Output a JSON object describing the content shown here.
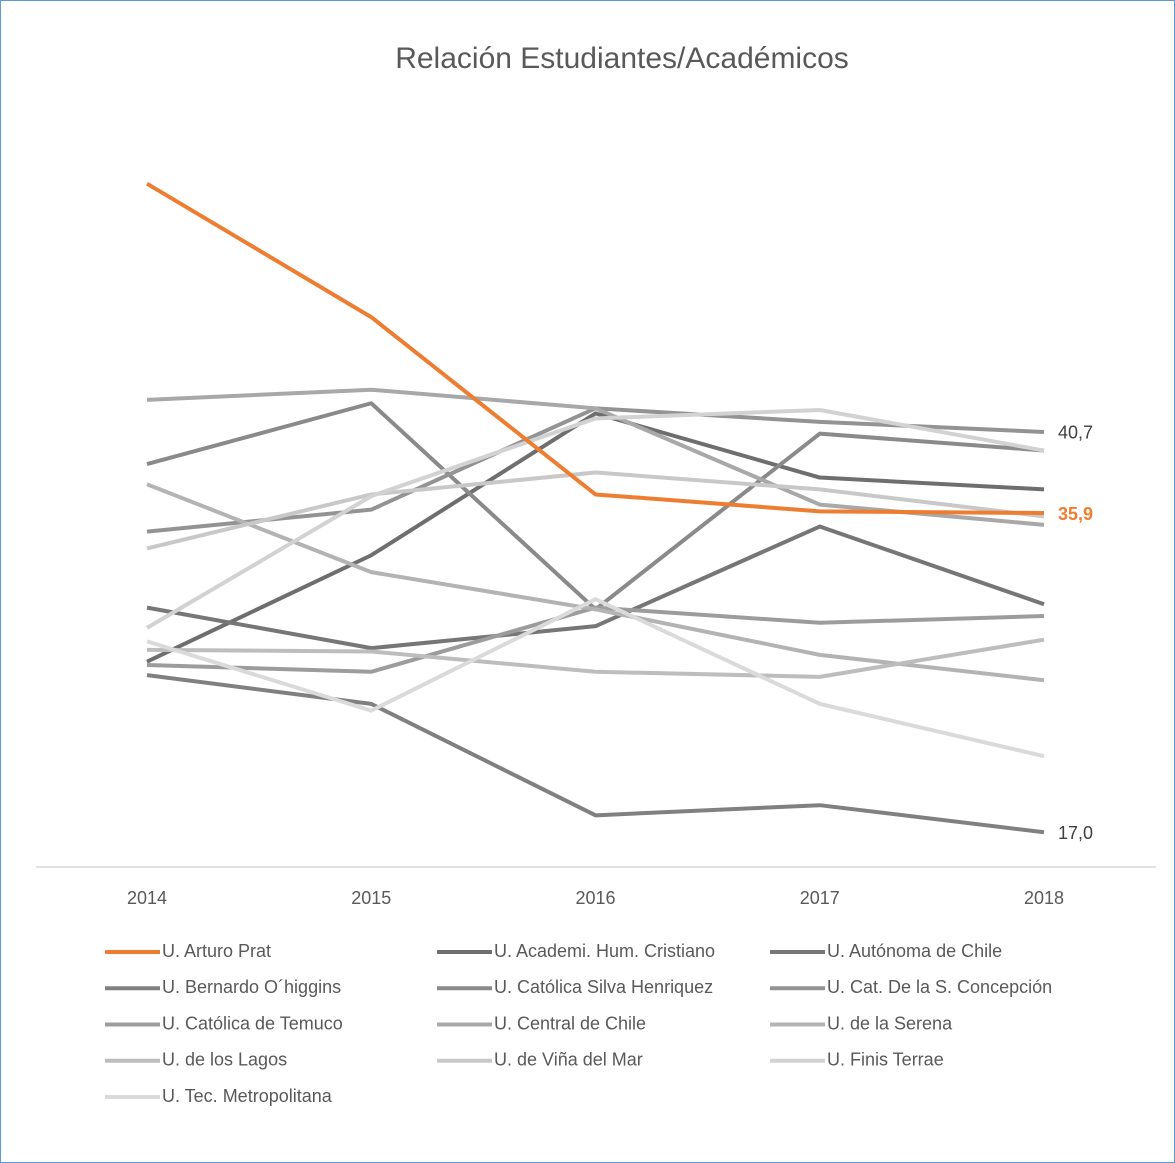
{
  "chart_data": {
    "type": "line",
    "title": "Relación Estudiantes/Académicos",
    "x": [
      "2014",
      "2015",
      "2016",
      "2017",
      "2018"
    ],
    "ylim": [
      15,
      60
    ],
    "series": [
      {
        "name": "U. Arturo Prat",
        "color": "#ed7d31",
        "values": [
          55.4,
          47.5,
          37.0,
          36.0,
          35.9
        ],
        "value_labels": [
          null,
          null,
          null,
          null,
          "35,9"
        ]
      },
      {
        "name": "U. Academi. Hum. Cristiano",
        "color": "#6e6e6e",
        "values": [
          27.1,
          33.4,
          41.8,
          38.0,
          37.3
        ]
      },
      {
        "name": "U. Autónoma de Chile",
        "color": "#767676",
        "values": [
          30.3,
          27.9,
          29.2,
          35.1,
          30.5
        ]
      },
      {
        "name": "U. Bernardo O´higgins",
        "color": "#808080",
        "values": [
          26.3,
          24.6,
          18.0,
          18.6,
          17.0
        ],
        "value_labels": [
          null,
          null,
          null,
          null,
          "17,0"
        ]
      },
      {
        "name": "U. Católica Silva Henriquez",
        "color": "#8a8a8a",
        "values": [
          38.8,
          42.4,
          30.2,
          40.6,
          39.6
        ]
      },
      {
        "name": "U. Cat. De la S. Concepción",
        "color": "#939393",
        "values": [
          34.8,
          36.1,
          42.1,
          41.3,
          40.7
        ],
        "value_labels": [
          null,
          null,
          null,
          null,
          "40,7"
        ]
      },
      {
        "name": "U. Católica de Temuco",
        "color": "#9c9c9c",
        "values": [
          26.9,
          26.5,
          30.3,
          29.4,
          29.8
        ]
      },
      {
        "name": "U. Central de Chile",
        "color": "#a8a8a8",
        "values": [
          42.6,
          43.2,
          42.1,
          36.4,
          35.2
        ]
      },
      {
        "name": "U. de la Serena",
        "color": "#b3b3b3",
        "values": [
          37.6,
          32.4,
          30.2,
          27.5,
          26.0
        ]
      },
      {
        "name": "U. de los Lagos",
        "color": "#bdbdbd",
        "values": [
          27.8,
          27.7,
          26.5,
          26.2,
          28.4
        ]
      },
      {
        "name": "U. de Viña del Mar",
        "color": "#c8c8c8",
        "values": [
          33.8,
          37.0,
          38.3,
          37.3,
          35.7
        ]
      },
      {
        "name": "U. Finis Terrae",
        "color": "#d2d2d2",
        "values": [
          29.1,
          36.9,
          41.5,
          42.0,
          39.6
        ]
      },
      {
        "name": "U. Tec. Metropolitana",
        "color": "#dadada",
        "values": [
          28.3,
          24.2,
          30.8,
          24.6,
          21.5
        ]
      }
    ]
  }
}
